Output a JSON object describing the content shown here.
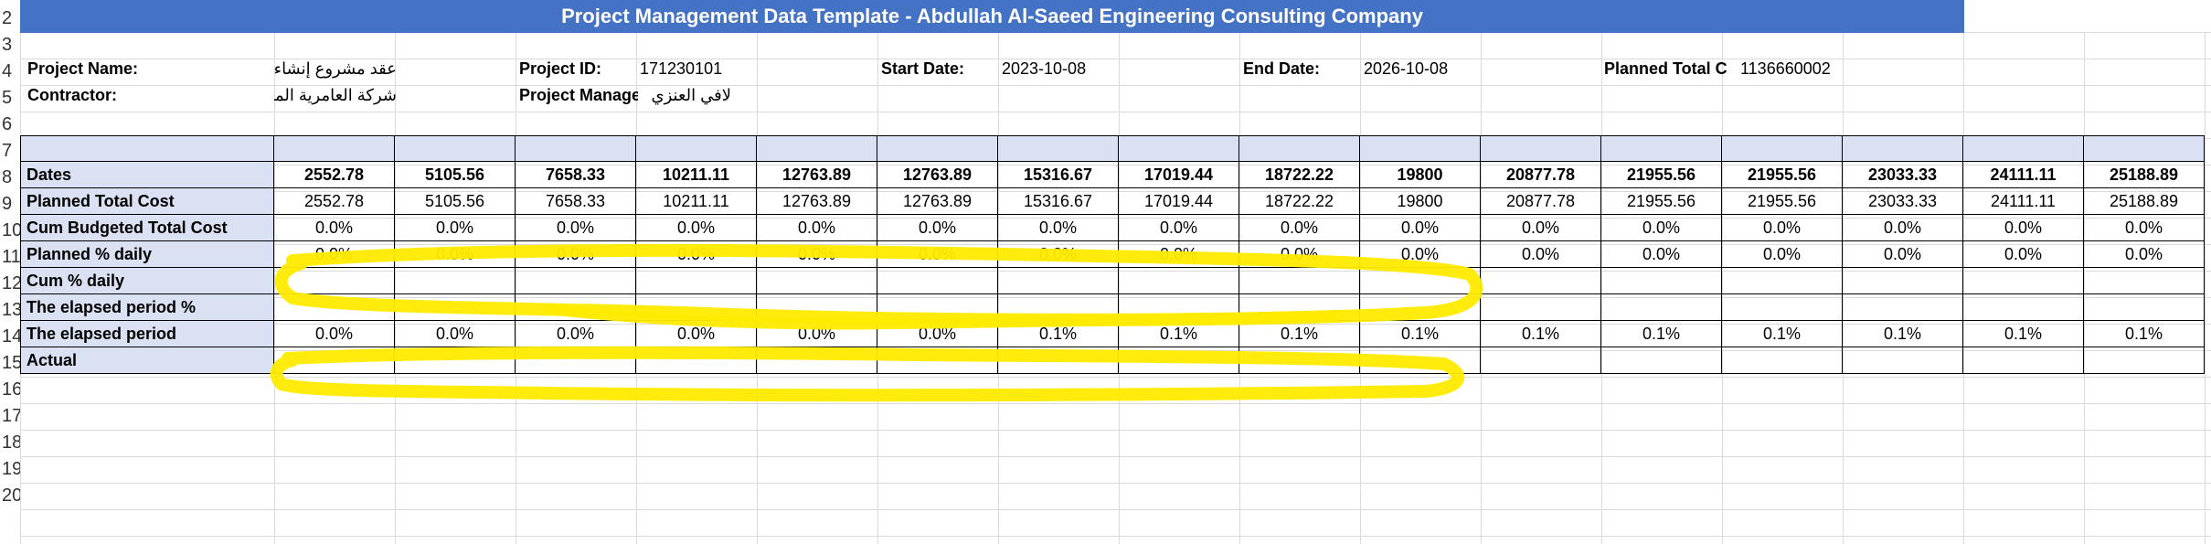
{
  "title": "Project Management Data Template - Abdullah Al-Saeed Engineering Consulting Company",
  "row_numbers": [
    "2",
    "3",
    "4",
    "5",
    "6",
    "7",
    "8",
    "9",
    "10",
    "11",
    "12",
    "13",
    "14",
    "15",
    "16",
    "17",
    "18",
    "19",
    "20"
  ],
  "info": {
    "project_name_label": "Project Name:",
    "project_name_value": "عقد مشروع إنشاء",
    "contractor_label": "Contractor:",
    "contractor_value": "شركة العامرية المت",
    "project_id_label": "Project ID:",
    "project_id_value": "171230101",
    "project_manager_label": "Project Manage",
    "project_manager_value": "لافي العنزي",
    "start_date_label": "Start Date:",
    "start_date_value": "2023-10-08",
    "end_date_label": "End Date:",
    "end_date_value": "2026-10-08",
    "planned_total_label": "Planned Total C",
    "planned_total_value": "1136660002"
  },
  "table": {
    "rows": [
      {
        "label": "",
        "values": [
          "",
          "",
          "",
          "",
          "",
          "",
          "",
          "",
          "",
          "",
          "",
          "",
          "",
          "",
          "",
          ""
        ]
      },
      {
        "label": "Dates",
        "values": [
          "2552.78",
          "5105.56",
          "7658.33",
          "10211.11",
          "12763.89",
          "12763.89",
          "15316.67",
          "17019.44",
          "18722.22",
          "19800",
          "20877.78",
          "21955.56",
          "21955.56",
          "23033.33",
          "24111.11",
          "25188.89"
        ]
      },
      {
        "label": "Planned Total Cost",
        "values": [
          "2552.78",
          "5105.56",
          "7658.33",
          "10211.11",
          "12763.89",
          "12763.89",
          "15316.67",
          "17019.44",
          "18722.22",
          "19800",
          "20877.78",
          "21955.56",
          "21955.56",
          "23033.33",
          "24111.11",
          "25188.89"
        ]
      },
      {
        "label": "Cum Budgeted Total Cost",
        "values": [
          "0.0%",
          "0.0%",
          "0.0%",
          "0.0%",
          "0.0%",
          "0.0%",
          "0.0%",
          "0.0%",
          "0.0%",
          "0.0%",
          "0.0%",
          "0.0%",
          "0.0%",
          "0.0%",
          "0.0%",
          "0.0%"
        ]
      },
      {
        "label": "Planned % daily",
        "values": [
          "0.0%",
          "0.0%",
          "0.0%",
          "0.0%",
          "0.0%",
          "0.0%",
          "0.0%",
          "0.0%",
          "0.0%",
          "0.0%",
          "0.0%",
          "0.0%",
          "0.0%",
          "0.0%",
          "0.0%",
          "0.0%"
        ]
      },
      {
        "label": "Cum % daily",
        "values": [
          "",
          "",
          "",
          "",
          "",
          "",
          "",
          "",
          "",
          "",
          "",
          "",
          "",
          "",
          "",
          ""
        ]
      },
      {
        "label": "The elapsed period %",
        "values": [
          "",
          "",
          "",
          "",
          "",
          "",
          "",
          "",
          "",
          "",
          "",
          "",
          "",
          "",
          "",
          ""
        ]
      },
      {
        "label": "The elapsed period",
        "values": [
          "0.0%",
          "0.0%",
          "0.0%",
          "0.0%",
          "0.0%",
          "0.0%",
          "0.1%",
          "0.1%",
          "0.1%",
          "0.1%",
          "0.1%",
          "0.1%",
          "0.1%",
          "0.1%",
          "0.1%",
          "0.1%"
        ]
      },
      {
        "label": "Actual",
        "values": [
          "",
          "",
          "",
          "",
          "",
          "",
          "",
          "",
          "",
          "",
          "",
          "",
          "",
          "",
          "",
          ""
        ]
      }
    ]
  },
  "highlight_color": "#ffeb00",
  "header_fill_color": "#d9e1f2",
  "title_fill_color": "#4472c4"
}
